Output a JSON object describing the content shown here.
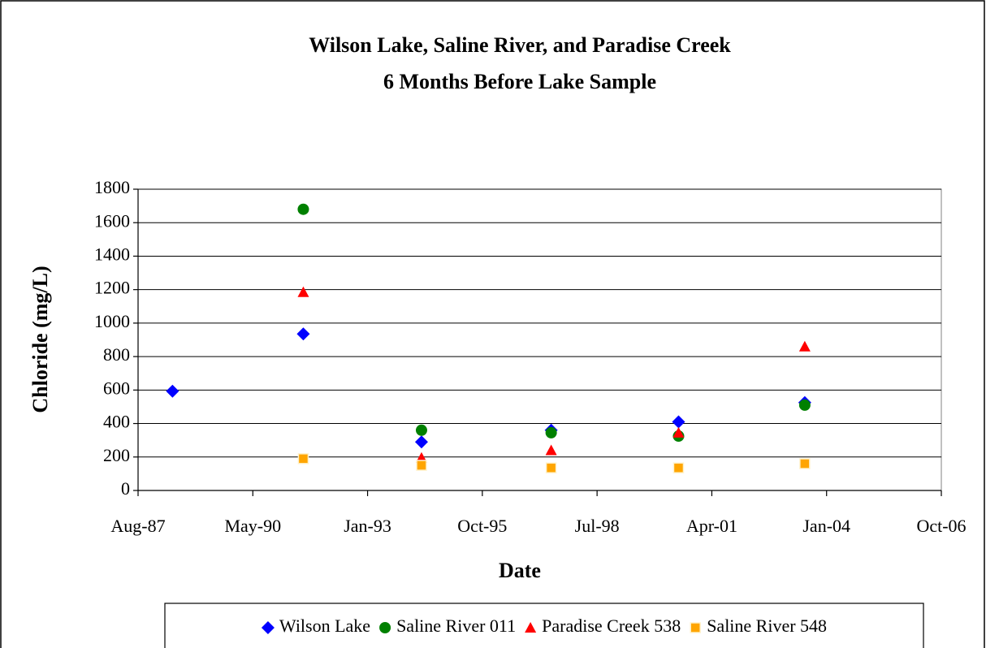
{
  "chart_data": {
    "type": "scatter",
    "title": [
      "Wilson Lake, Saline River, and Paradise Creek",
      "6 Months Before Lake Sample"
    ],
    "x_label": "Date",
    "y_label": "Chloride (mg/L)",
    "x": [
      32300,
      33440,
      34470,
      35600,
      36710,
      37810
    ],
    "series": [
      {
        "name": "Wilson Lake",
        "color": "#0000ff",
        "marker": "diamond",
        "values": [
          593,
          935,
          290,
          360,
          410,
          525
        ]
      },
      {
        "name": "Saline River 011",
        "color": "#008000",
        "marker": "circle",
        "values": [
          null,
          1680,
          360,
          345,
          325,
          510
        ]
      },
      {
        "name": "Paradise Creek 538",
        "color": "#ff0000",
        "marker": "triangle",
        "values": [
          null,
          1185,
          195,
          240,
          345,
          860
        ]
      },
      {
        "name": "Saline River 548",
        "color": "#ffa500",
        "marker": "square",
        "values": [
          null,
          190,
          150,
          135,
          135,
          160
        ]
      }
    ],
    "xlim": [
      32000,
      39000
    ],
    "xticks": [
      {
        "value": 32000,
        "label": "Aug-87"
      },
      {
        "value": 33000,
        "label": "May-90"
      },
      {
        "value": 34000,
        "label": "Jan-93"
      },
      {
        "value": 35000,
        "label": "Oct-95"
      },
      {
        "value": 36000,
        "label": "Jul-98"
      },
      {
        "value": 37000,
        "label": "Apr-01"
      },
      {
        "value": 38000,
        "label": "Jan-04"
      },
      {
        "value": 39000,
        "label": "Oct-06"
      }
    ],
    "ylim": [
      0,
      1800
    ],
    "yticks": [
      0,
      200,
      400,
      600,
      800,
      1000,
      1200,
      1400,
      1600,
      1800
    ],
    "grid": true,
    "legend": "bottom"
  }
}
